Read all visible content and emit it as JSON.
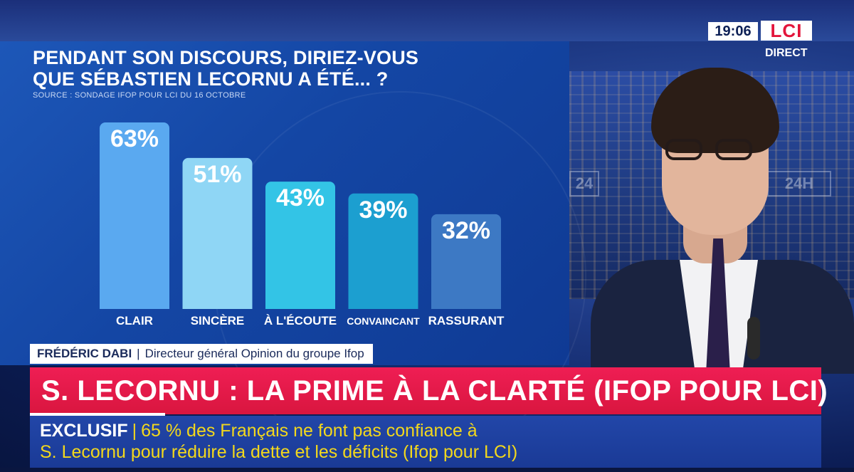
{
  "broadcast": {
    "time": "19:06",
    "channel_logo": "LCI",
    "live_label": "DIRECT"
  },
  "chart_data": {
    "type": "bar",
    "title_line1": "PENDANT SON DISCOURS, DIRIEZ-VOUS",
    "title_line2": "QUE SÉBASTIEN LECORNU A ÉTÉ... ?",
    "source": "SOURCE : SONDAGE IFOP POUR LCI DU 16 OCTOBRE",
    "categories": [
      "CLAIR",
      "SINCÈRE",
      "À L'ÉCOUTE",
      "CONVAINCANT",
      "RASSURANT"
    ],
    "values": [
      63,
      51,
      43,
      39,
      32
    ],
    "value_labels": [
      "63%",
      "51%",
      "43%",
      "39%",
      "32%"
    ],
    "unit": "%",
    "ylim": [
      0,
      63
    ],
    "grid": false,
    "legend": "none",
    "bar_colors": [
      "#5aa9f0",
      "#8fd6f5",
      "#33c4e6",
      "#1c9fd0",
      "#3d79c4"
    ]
  },
  "caption": {
    "name": "FRÉDÉRIC DABI",
    "role": "Directeur général Opinion du groupe Ifop"
  },
  "headline": {
    "text": "S. LECORNU : LA PRIME À LA CLARTÉ (IFOP POUR LCI)"
  },
  "ticker": {
    "label": "EXCLUSIF",
    "line1": "65 % des Français ne font pas confiance à",
    "line2": "S. Lecornu pour réduire la dette et les déficits (Ifop pour LCI)"
  },
  "colors": {
    "headline_bg": "#e81b4c",
    "ticker_bg": "#1f42a0",
    "ticker_text": "#f3d81c",
    "panel_bg": "#1650b0"
  }
}
